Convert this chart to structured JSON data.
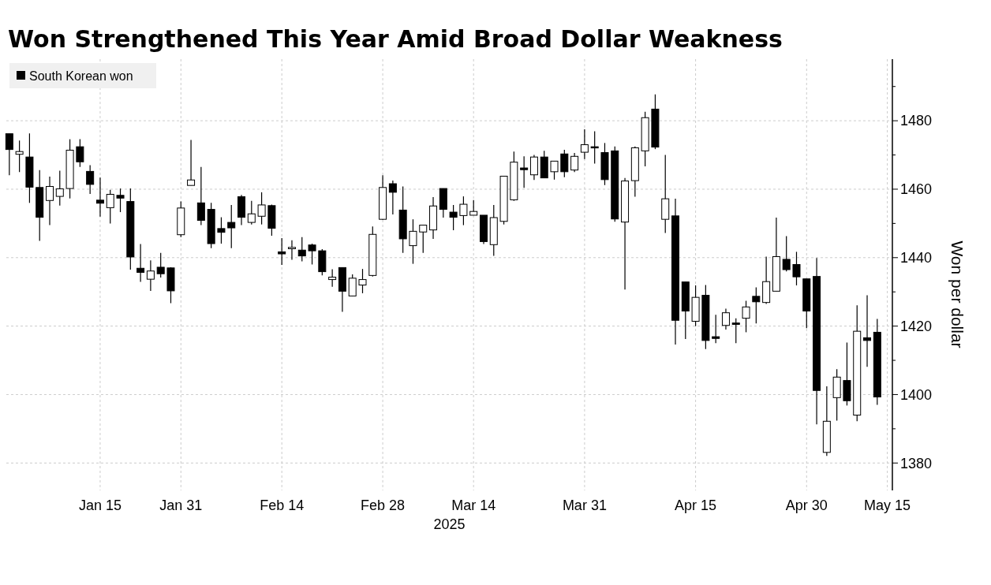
{
  "chart_data": {
    "type": "candlestick",
    "title": "Won Strengthened This Year Amid Broad Dollar Weakness",
    "xlabel": "2025",
    "ylabel": "Won per dollar",
    "categories": [
      null,
      null,
      null,
      null,
      null,
      null,
      null,
      null,
      null,
      "Jan 15",
      null,
      null,
      null,
      null,
      null,
      null,
      null,
      "Jan 31",
      null,
      null,
      null,
      null,
      null,
      null,
      null,
      null,
      null,
      "Feb 14",
      null,
      null,
      null,
      null,
      null,
      null,
      null,
      null,
      null,
      "Feb 28",
      null,
      null,
      null,
      null,
      null,
      null,
      null,
      null,
      "Mar 14",
      null,
      null,
      null,
      null,
      null,
      null,
      null,
      null,
      null,
      null,
      "Mar 31",
      null,
      null,
      null,
      null,
      null,
      null,
      null,
      null,
      null,
      null,
      "Apr 15",
      null,
      null,
      null,
      null,
      null,
      null,
      null,
      null,
      null,
      null,
      "Apr 30",
      null,
      null,
      null,
      null,
      null,
      null,
      null,
      "May 15"
    ],
    "series": [
      {
        "name": "South Korean won",
        "color": "#000000",
        "ohlc": [
          [
            1476.2,
            1476.2,
            1464.1,
            1471.6
          ],
          [
            1470.2,
            1474.2,
            1465,
            1471
          ],
          [
            1469.4,
            1476.3,
            1456,
            1460.6
          ],
          [
            1460.5,
            1465.6,
            1444.9,
            1451.8
          ],
          [
            1456.7,
            1463.7,
            1449.5,
            1460.8
          ],
          [
            1457.9,
            1465.4,
            1455.2,
            1460.1
          ],
          [
            1460.2,
            1474.6,
            1457.3,
            1471.4
          ],
          [
            1472.4,
            1474.6,
            1466.5,
            1468
          ],
          [
            1465.2,
            1467,
            1458.6,
            1461.4
          ],
          [
            1456.8,
            1463.4,
            1452,
            1455.9
          ],
          [
            1454.6,
            1459.8,
            1450,
            1458.5
          ],
          [
            1458.2,
            1460.2,
            1453.3,
            1457.4
          ],
          [
            1456.4,
            1460.2,
            1436.5,
            1440.2
          ],
          [
            1436.9,
            1444,
            1432.9,
            1435.7
          ],
          [
            1433.7,
            1439.2,
            1430.3,
            1436.1
          ],
          [
            1437.2,
            1441.4,
            1434.2,
            1435.3
          ],
          [
            1437,
            1437.2,
            1426.7,
            1430.3
          ],
          [
            1446.7,
            1456.4,
            1446,
            1454.5
          ],
          [
            1461.1,
            1474.4,
            1461.1,
            1462.7
          ],
          [
            1456,
            1466.5,
            1449.5,
            1450.9
          ],
          [
            1454.1,
            1456,
            1442.8,
            1444.1
          ],
          [
            1448.5,
            1451.8,
            1444.1,
            1447.4
          ],
          [
            1450.3,
            1455.4,
            1442.8,
            1448.7
          ],
          [
            1457.8,
            1458.3,
            1449.5,
            1451.8
          ],
          [
            1450.3,
            1456.6,
            1449.7,
            1452.8
          ],
          [
            1452.1,
            1459.1,
            1449.7,
            1455.4
          ],
          [
            1455.2,
            1455.5,
            1446.4,
            1448.6
          ],
          [
            1441.7,
            1445.7,
            1437.9,
            1441.1
          ],
          [
            1442.6,
            1445.1,
            1439.4,
            1443
          ],
          [
            1442.2,
            1446,
            1438.9,
            1440.5
          ],
          [
            1443.7,
            1444.1,
            1438,
            1442
          ],
          [
            1442,
            1442.5,
            1434.8,
            1435.9
          ],
          [
            1433.6,
            1436.6,
            1431.5,
            1434.3
          ],
          [
            1437.1,
            1437.1,
            1424.2,
            1430.2
          ],
          [
            1428.8,
            1435.1,
            1428.8,
            1434
          ],
          [
            1432,
            1436.7,
            1429.6,
            1433.6
          ],
          [
            1434.8,
            1449.1,
            1434.5,
            1446.8
          ],
          [
            1451.2,
            1464.1,
            1451,
            1460.5
          ],
          [
            1461.6,
            1462.5,
            1452.6,
            1459.1
          ],
          [
            1453.9,
            1460.8,
            1441.4,
            1445.5
          ],
          [
            1443.5,
            1451.2,
            1438.2,
            1447.7
          ],
          [
            1447.5,
            1449.6,
            1441.4,
            1449.5
          ],
          [
            1448.1,
            1457.7,
            1445.5,
            1455.1
          ],
          [
            1460.2,
            1460.2,
            1451.7,
            1454.1
          ],
          [
            1453.3,
            1455.4,
            1448,
            1451.8
          ],
          [
            1452.3,
            1457.9,
            1449.5,
            1455.6
          ],
          [
            1452.4,
            1456.8,
            1452.4,
            1453.5
          ],
          [
            1452.4,
            1452.4,
            1444,
            1444.7
          ],
          [
            1443.8,
            1455.4,
            1440.5,
            1451.7
          ],
          [
            1450.6,
            1463.8,
            1449.7,
            1463.8
          ],
          [
            1456.9,
            1471,
            1456.6,
            1467.9
          ],
          [
            1466.2,
            1469.6,
            1460.4,
            1465.7
          ],
          [
            1464.2,
            1470,
            1462.7,
            1469.4
          ],
          [
            1469.4,
            1471.2,
            1463.3,
            1463.3
          ],
          [
            1465.1,
            1468.2,
            1462.8,
            1468.2
          ],
          [
            1470.3,
            1471.5,
            1463.5,
            1465.1
          ],
          [
            1465.6,
            1470.6,
            1465,
            1469.6
          ],
          [
            1470.8,
            1477.5,
            1468.8,
            1473
          ],
          [
            1472.4,
            1476.9,
            1467.5,
            1472.2
          ],
          [
            1470.7,
            1473.5,
            1461.2,
            1462.8
          ],
          [
            1471.2,
            1472.5,
            1450.5,
            1451.3
          ],
          [
            1450.4,
            1463.3,
            1430.7,
            1462.4
          ],
          [
            1462.5,
            1472.5,
            1457.8,
            1472.1
          ],
          [
            1471.2,
            1482.6,
            1466.7,
            1480.9
          ],
          [
            1483.4,
            1487.7,
            1471.7,
            1472.3
          ],
          [
            1451.2,
            1470,
            1447.2,
            1457.2
          ],
          [
            1452.2,
            1457.2,
            1414.6,
            1421.7
          ],
          [
            1432.9,
            1432.9,
            1416.2,
            1424.4
          ],
          [
            1421.4,
            1431.9,
            1420,
            1428.4
          ],
          [
            1429,
            1432,
            1413.3,
            1415.8
          ],
          [
            1416.9,
            1423.3,
            1415,
            1416.4
          ],
          [
            1420.2,
            1425.1,
            1419,
            1423.9
          ],
          [
            1420.9,
            1422.3,
            1415,
            1420.5
          ],
          [
            1422.3,
            1427.4,
            1418.2,
            1425.6
          ],
          [
            1428.7,
            1431.3,
            1420.8,
            1427.1
          ],
          [
            1426.9,
            1440.3,
            1426.5,
            1433
          ],
          [
            1430.2,
            1451.7,
            1430.2,
            1440.3
          ],
          [
            1439.5,
            1446.3,
            1436,
            1436.5
          ],
          [
            1438,
            1441.7,
            1431.9,
            1434.4
          ],
          [
            1433.8,
            1433.8,
            1419.4,
            1424.4
          ],
          [
            1434.5,
            1439.9,
            1391.3,
            1401.2
          ],
          [
            1383.1,
            1402.4,
            1382.1,
            1392.2
          ],
          [
            1399.1,
            1407.4,
            1392.4,
            1405.1
          ],
          [
            1404.1,
            1415.2,
            1396.8,
            1398.2
          ],
          [
            1394,
            1426.1,
            1392.2,
            1418.5
          ],
          [
            1416.6,
            1429,
            1408.1,
            1415.8
          ],
          [
            1418.2,
            1422.1,
            1397,
            1399.3
          ],
          null
        ]
      }
    ],
    "ylim": [
      1372,
      1498
    ],
    "yticks": [
      1380,
      {
        "value": 1390,
        "label": null
      },
      1400,
      {
        "value": 1410,
        "label": null
      },
      1420,
      {
        "value": 1430,
        "label": null
      },
      1440,
      {
        "value": 1450,
        "label": null
      },
      1460,
      {
        "value": 1470,
        "label": null
      },
      1480,
      {
        "value": 1490,
        "label": null
      }
    ],
    "grid": true,
    "legend": "top left"
  }
}
